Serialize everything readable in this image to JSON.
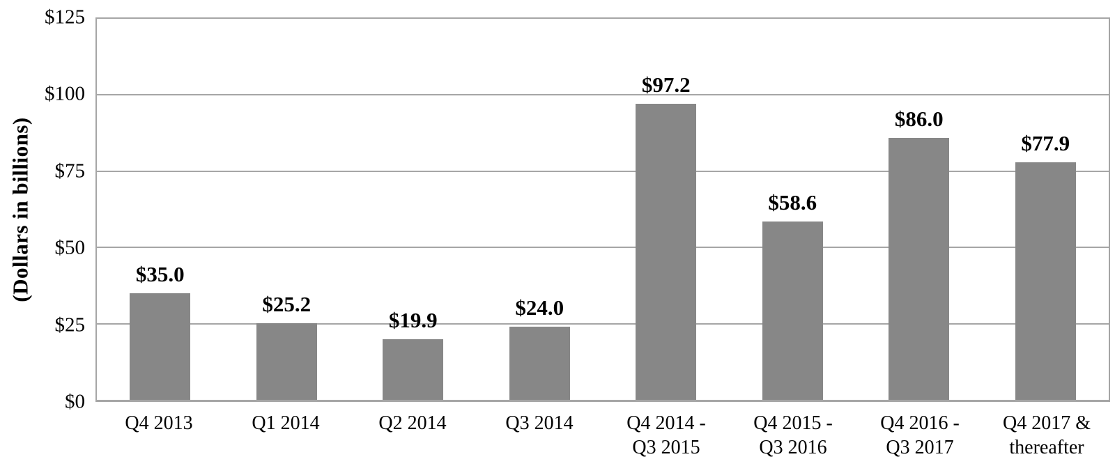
{
  "chart_data": {
    "type": "bar",
    "title": "",
    "xlabel": "",
    "ylabel": "(Dollars in billions)",
    "ymax": 125,
    "ylim": [
      0,
      125
    ],
    "grid": true,
    "legend": "none",
    "bar_color": "#878787",
    "grid_color": "#a6a6a6",
    "yticks": [
      {
        "value": 0,
        "label": "$0"
      },
      {
        "value": 25,
        "label": "$25"
      },
      {
        "value": 50,
        "label": "$50"
      },
      {
        "value": 75,
        "label": "$75"
      },
      {
        "value": 100,
        "label": "$100"
      },
      {
        "value": 125,
        "label": "$125"
      }
    ],
    "gridline_values": [
      25,
      50,
      75,
      100
    ],
    "categories": [
      "Q4 2013",
      "Q1 2014",
      "Q2 2014",
      "Q3 2014",
      "Q4 2014 -\nQ3 2015",
      "Q4 2015 -\nQ3 2016",
      "Q4 2016 -\nQ3 2017",
      "Q4 2017 &\nthereafter"
    ],
    "values": [
      35.0,
      25.2,
      19.9,
      24.0,
      97.2,
      58.6,
      86.0,
      77.9
    ],
    "value_labels": [
      "$35.0",
      "$25.2",
      "$19.9",
      "$24.0",
      "$97.2",
      "$58.6",
      "$86.0",
      "$77.9"
    ]
  }
}
